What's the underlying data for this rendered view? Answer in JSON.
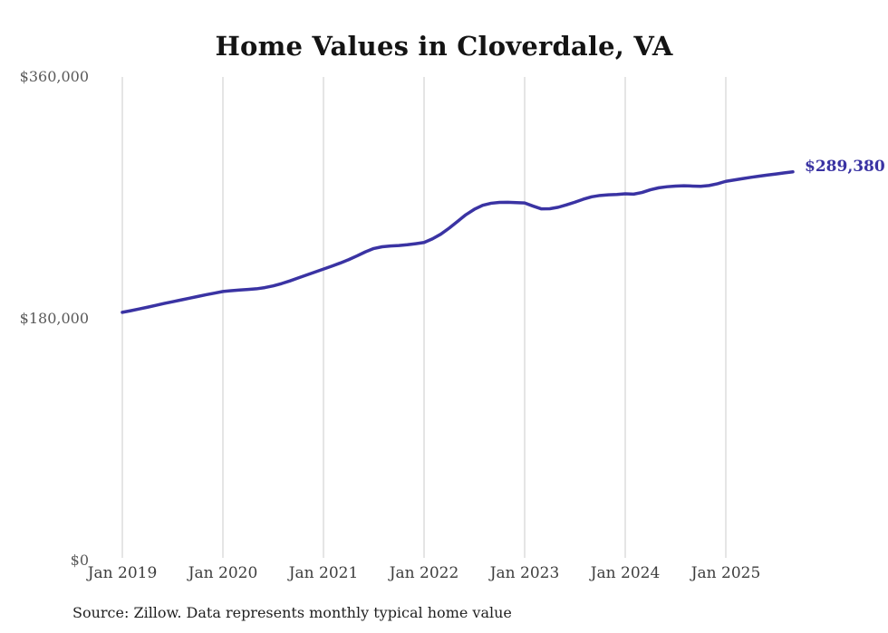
{
  "chart": {
    "title": "Home Values in Cloverdale, VA",
    "end_label": "$289,380",
    "source_note": "Source: Zillow. Data represents monthly typical home value",
    "colors": {
      "line": "#3a33a3",
      "end_label": "#3a33a3",
      "gridline": "#cbcbcb",
      "title": "#141414",
      "y_tick": "#595959",
      "x_tick": "#3d3d3d",
      "source": "#1f1f1f",
      "background": "#ffffff"
    }
  },
  "chart_data": {
    "type": "line",
    "title": "Home Values in Cloverdale, VA",
    "xlabel": "",
    "ylabel": "",
    "ylim": [
      0,
      360000
    ],
    "y_ticks": [
      {
        "value": 0,
        "label": "$0"
      },
      {
        "value": 180000,
        "label": "$180,000"
      },
      {
        "value": 360000,
        "label": "$360,000"
      }
    ],
    "x_ticks": [
      "Jan 2019",
      "Jan 2020",
      "Jan 2021",
      "Jan 2022",
      "Jan 2023",
      "Jan 2024",
      "Jan 2025"
    ],
    "grid": "vertical-only",
    "legend": "none",
    "last_point_label": "$289,380",
    "x": [
      "2019-01",
      "2019-02",
      "2019-03",
      "2019-04",
      "2019-05",
      "2019-06",
      "2019-07",
      "2019-08",
      "2019-09",
      "2019-10",
      "2019-11",
      "2019-12",
      "2020-01",
      "2020-02",
      "2020-03",
      "2020-04",
      "2020-05",
      "2020-06",
      "2020-07",
      "2020-08",
      "2020-09",
      "2020-10",
      "2020-11",
      "2020-12",
      "2021-01",
      "2021-02",
      "2021-03",
      "2021-04",
      "2021-05",
      "2021-06",
      "2021-07",
      "2021-08",
      "2021-09",
      "2021-10",
      "2021-11",
      "2021-12",
      "2022-01",
      "2022-02",
      "2022-03",
      "2022-04",
      "2022-05",
      "2022-06",
      "2022-07",
      "2022-08",
      "2022-09",
      "2022-10",
      "2022-11",
      "2022-12",
      "2023-01",
      "2023-02",
      "2023-03",
      "2023-04",
      "2023-05",
      "2023-06",
      "2023-07",
      "2023-08",
      "2023-09",
      "2023-10",
      "2023-11",
      "2023-12",
      "2024-01",
      "2024-02",
      "2024-03",
      "2024-04",
      "2024-05",
      "2024-06",
      "2024-07",
      "2024-08",
      "2024-09",
      "2024-10",
      "2024-11",
      "2024-12",
      "2025-01",
      "2025-02",
      "2025-03",
      "2025-04",
      "2025-05",
      "2025-06",
      "2025-07",
      "2025-08",
      "2025-09"
    ],
    "values": [
      184800,
      186000,
      187300,
      188600,
      190000,
      191400,
      192700,
      194000,
      195300,
      196600,
      197900,
      199100,
      200300,
      200900,
      201400,
      201800,
      202300,
      203200,
      204500,
      206200,
      208200,
      210400,
      212600,
      214800,
      217000,
      219200,
      221500,
      224000,
      226800,
      229800,
      232300,
      233600,
      234200,
      234500,
      235100,
      235900,
      236800,
      239500,
      243000,
      247500,
      252500,
      257500,
      261500,
      264500,
      266000,
      266600,
      266700,
      266500,
      266200,
      263900,
      261800,
      261900,
      263000,
      264800,
      266800,
      269000,
      270800,
      271800,
      272300,
      272500,
      273000,
      272800,
      274000,
      276000,
      277500,
      278300,
      278800,
      279000,
      278800,
      278600,
      279200,
      280500,
      282300,
      283300,
      284300,
      285300,
      286200,
      287000,
      287800,
      288600,
      289380
    ]
  }
}
